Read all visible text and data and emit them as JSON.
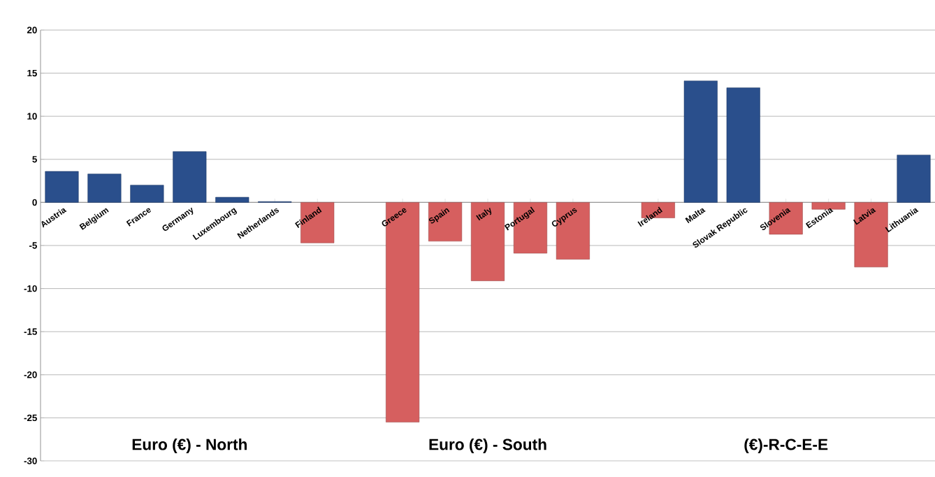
{
  "chart_data": {
    "type": "bar",
    "categories": [
      "Austria",
      "Belgium",
      "France",
      "Germany",
      "Luxembourg",
      "Netherlands",
      "Finland",
      null,
      "Greece",
      "Spain",
      "Italy",
      "Portugal",
      "Cyprus",
      null,
      "Ireland",
      "Malta",
      "Slovak Republic",
      "Slovenia",
      "Estonia",
      "Latvia",
      "Lithuania"
    ],
    "values": [
      3.6,
      3.3,
      2.0,
      5.9,
      0.6,
      0.1,
      -4.7,
      null,
      -25.5,
      -4.5,
      -9.1,
      -5.9,
      -6.6,
      null,
      -1.8,
      14.1,
      13.3,
      -3.7,
      -0.8,
      -7.5,
      5.5
    ],
    "colors": [
      "#2a4f8c",
      "#2a4f8c",
      "#2a4f8c",
      "#2a4f8c",
      "#2a4f8c",
      "#2a4f8c",
      "#d65f5f",
      null,
      "#d65f5f",
      "#d65f5f",
      "#d65f5f",
      "#d65f5f",
      "#d65f5f",
      null,
      "#d65f5f",
      "#2a4f8c",
      "#2a4f8c",
      "#d65f5f",
      "#d65f5f",
      "#d65f5f",
      "#2a4f8c"
    ],
    "ylim": [
      -30,
      20
    ],
    "yticks": [
      -30,
      -25,
      -20,
      -15,
      -10,
      -5,
      0,
      5,
      10,
      15,
      20
    ],
    "grid": "y",
    "annotations": [
      "Euro (€) - North",
      "Euro (€) - South",
      "(€)-R-C-E-E"
    ]
  }
}
